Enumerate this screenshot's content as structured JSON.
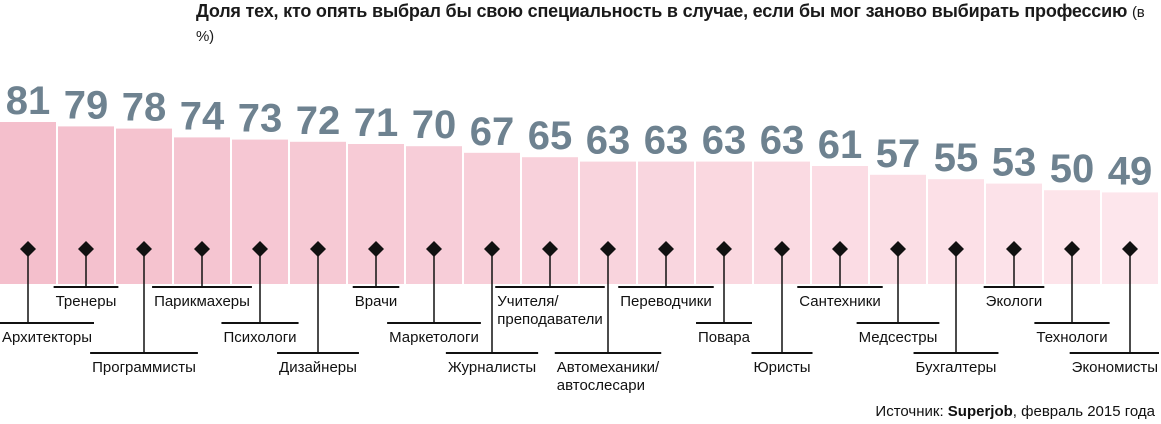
{
  "chart_data": {
    "type": "bar",
    "title": "Доля тех, кто опять выбрал бы свою специальность в случае, если бы мог заново выбирать профессию",
    "title_unit": "(в %)",
    "categories": [
      "Архитекторы",
      "Тренеры",
      "Программисты",
      "Парикмахеры",
      "Психологи",
      "Дизайнеры",
      "Врачи",
      "Маркетологи",
      "Журналисты",
      "Учителя/ преподаватели",
      "Автомеханики/ автослесари",
      "Переводчики",
      "Повара",
      "Юристы",
      "Сантехники",
      "Медсестры",
      "Бухгалтеры",
      "Экологи",
      "Технологи",
      "Экономисты"
    ],
    "values": [
      81,
      79,
      78,
      74,
      73,
      72,
      71,
      70,
      67,
      65,
      63,
      63,
      63,
      63,
      61,
      57,
      55,
      53,
      50,
      49
    ],
    "value_labels": [
      "81",
      "79",
      "78",
      "74",
      "73",
      "72",
      "71",
      "70",
      "67",
      "65",
      "63",
      "63",
      "63",
      "63",
      "61",
      "57",
      "55",
      "53",
      "50",
      "49"
    ],
    "colors": {
      "bar_start": "#f4bfcc",
      "bar_end": "#fde6ec",
      "value_text": "#6e8290",
      "marker": "#111111"
    }
  },
  "source": {
    "prefix": "Источник: ",
    "name": "Superjob",
    "suffix": ", февраль 2015 года"
  }
}
